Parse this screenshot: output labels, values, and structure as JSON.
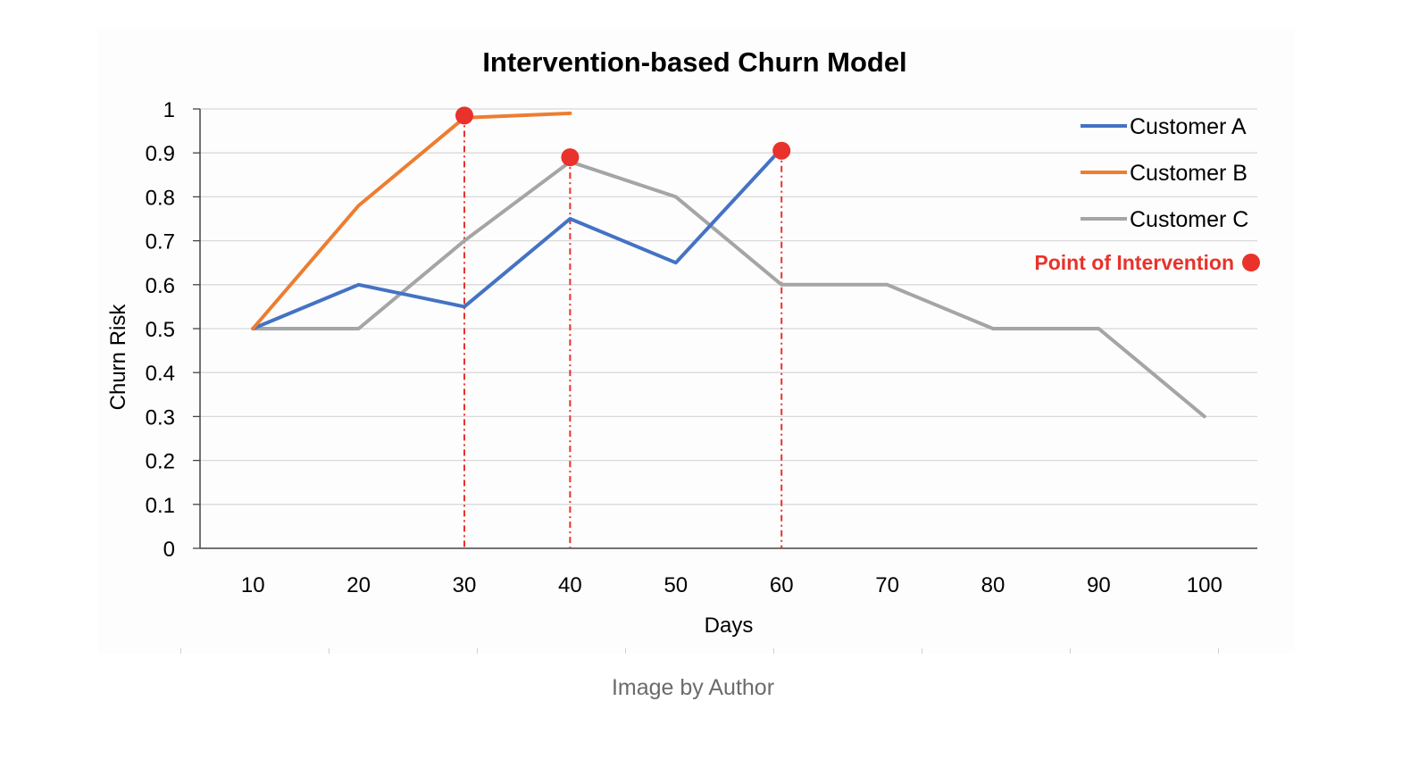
{
  "chart_data": {
    "type": "line",
    "title": "Intervention-based Churn Model",
    "xlabel": "Days",
    "ylabel": "Churn Risk",
    "categories": [
      10,
      20,
      30,
      40,
      50,
      60,
      70,
      80,
      90,
      100
    ],
    "ylim": [
      0,
      1
    ],
    "y_ticks": [
      "0",
      "0.1",
      "0.2",
      "0.3",
      "0.4",
      "0.5",
      "0.6",
      "0.7",
      "0.8",
      "0.9",
      "1"
    ],
    "grid": true,
    "legend_position": "top-right",
    "series": [
      {
        "name": "Customer A",
        "color": "#4472c4",
        "values": [
          0.5,
          0.6,
          0.55,
          0.75,
          0.65,
          0.91,
          null,
          null,
          null,
          null
        ]
      },
      {
        "name": "Customer B",
        "color": "#ed7d31",
        "values": [
          0.5,
          0.78,
          0.98,
          0.99,
          null,
          null,
          null,
          null,
          null,
          null
        ]
      },
      {
        "name": "Customer C",
        "color": "#a5a5a5",
        "values": [
          0.5,
          0.5,
          0.7,
          0.88,
          0.8,
          0.6,
          0.6,
          0.5,
          0.5,
          0.3
        ]
      }
    ],
    "interventions": {
      "label": "Point of Intervention",
      "color": "#e8322b",
      "points": [
        {
          "x": 30,
          "y": 0.985
        },
        {
          "x": 40,
          "y": 0.89
        },
        {
          "x": 60,
          "y": 0.905
        }
      ]
    }
  },
  "caption": "Image by Author"
}
